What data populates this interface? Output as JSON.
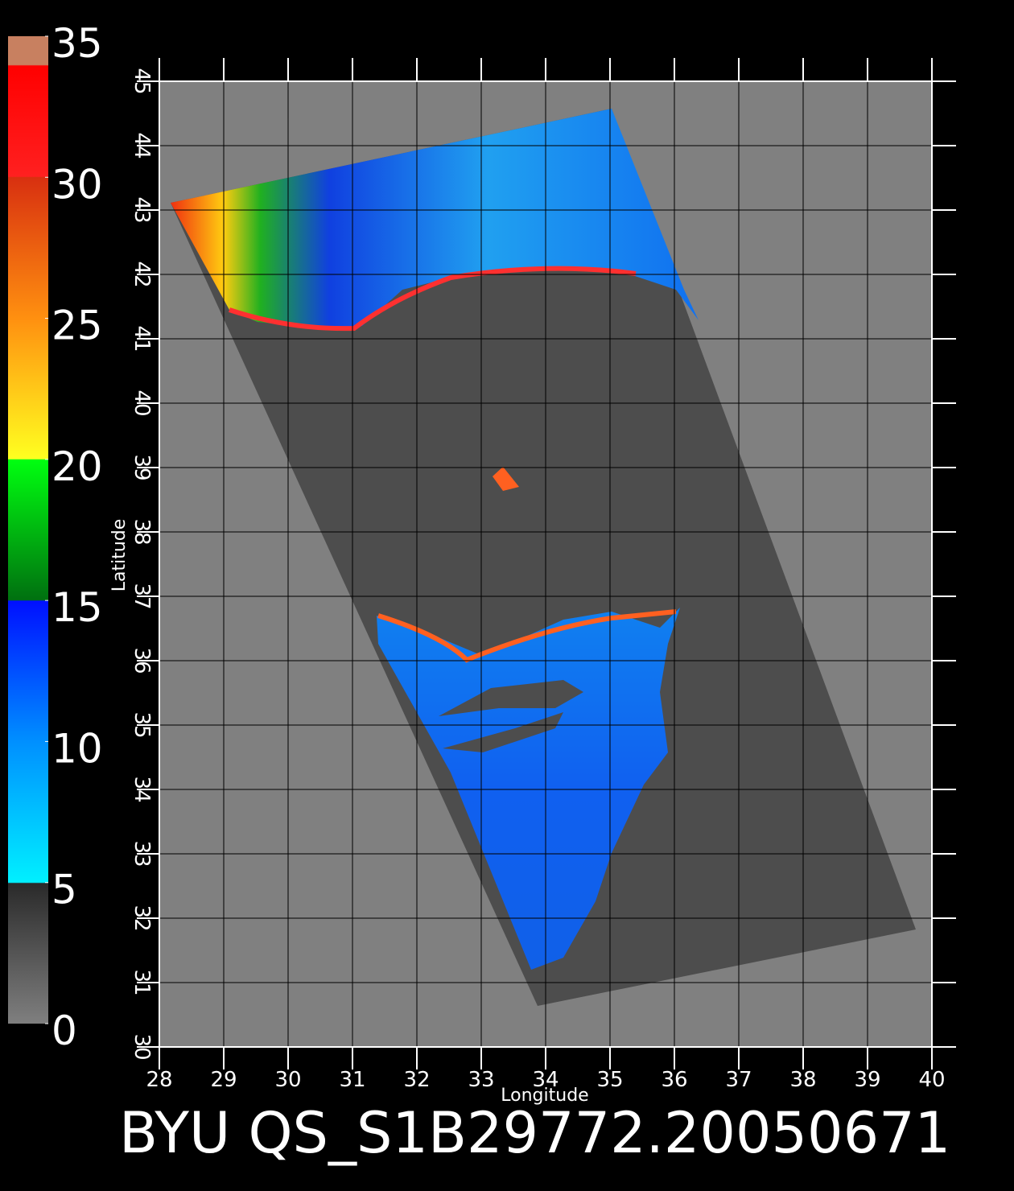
{
  "map": {
    "title": "BYU QS_S1B29772.20050671",
    "xlabel": "Longitude",
    "ylabel": "Latitude",
    "xlim": [
      28,
      40
    ],
    "ylim": [
      30,
      45
    ],
    "xticks": [
      28,
      29,
      30,
      31,
      32,
      33,
      34,
      35,
      36,
      37,
      38,
      39,
      40
    ],
    "yticks": [
      30,
      31,
      32,
      33,
      34,
      35,
      36,
      37,
      38,
      39,
      40,
      41,
      42,
      43,
      44,
      45
    ],
    "colorbar": {
      "lim": [
        0,
        35
      ],
      "ticks": [
        0,
        5,
        10,
        15,
        20,
        25,
        30,
        35
      ]
    }
  }
}
